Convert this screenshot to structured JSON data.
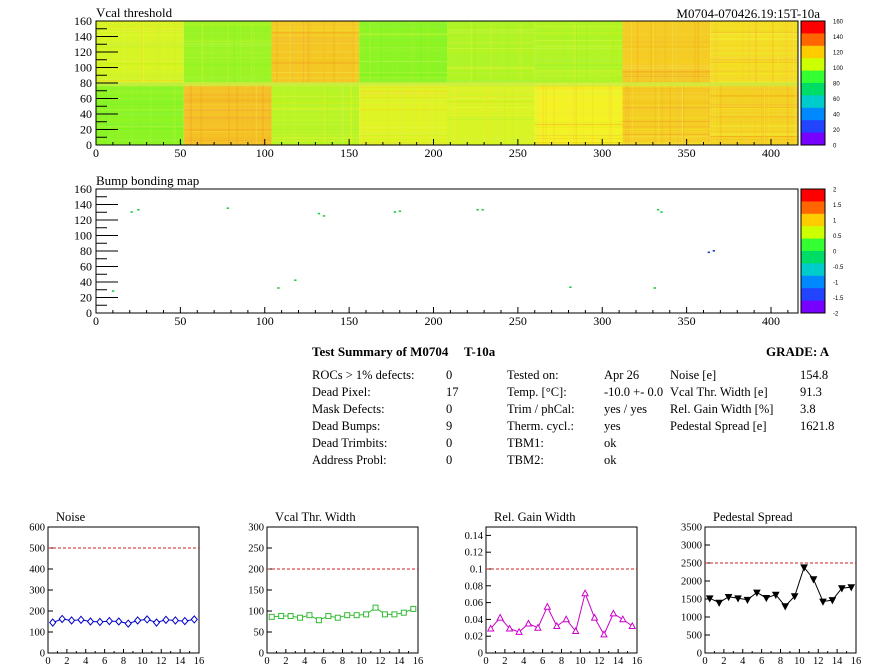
{
  "header": {
    "title_right": "M0704-070426.19:15T-10a"
  },
  "maps": [
    {
      "title": "Vcal threshold",
      "xlim": [
        0,
        416
      ],
      "ylim": [
        0,
        160
      ],
      "xticks": [
        0,
        50,
        100,
        150,
        200,
        250,
        300,
        350,
        400
      ],
      "yticks": [
        0,
        20,
        40,
        60,
        80,
        100,
        120,
        140,
        160
      ],
      "scale_labels": [
        "160",
        "140",
        "120",
        "100",
        "80",
        "60",
        "40",
        "20",
        "0"
      ]
    },
    {
      "title": "Bump bonding map",
      "xlim": [
        0,
        416
      ],
      "ylim": [
        0,
        160
      ],
      "xticks": [
        0,
        50,
        100,
        150,
        200,
        250,
        300,
        350,
        400
      ],
      "yticks": [
        0,
        20,
        40,
        60,
        80,
        100,
        120,
        140,
        160
      ],
      "scale_labels": [
        "2",
        "1.5",
        "1",
        "0.5",
        "0",
        "-0.5",
        "-1",
        "-1.5",
        "-2"
      ],
      "points": [
        {
          "x": 21,
          "y": 130,
          "c": "#22cc44"
        },
        {
          "x": 25,
          "y": 133,
          "c": "#22cc44"
        },
        {
          "x": 78,
          "y": 135,
          "c": "#22cc44"
        },
        {
          "x": 132,
          "y": 128,
          "c": "#22cc44"
        },
        {
          "x": 135,
          "y": 125,
          "c": "#22cc44"
        },
        {
          "x": 177,
          "y": 130,
          "c": "#22cc44"
        },
        {
          "x": 180,
          "y": 131,
          "c": "#22cc44"
        },
        {
          "x": 226,
          "y": 133,
          "c": "#22cc44"
        },
        {
          "x": 229,
          "y": 133,
          "c": "#22cc44"
        },
        {
          "x": 333,
          "y": 133,
          "c": "#22cc44"
        },
        {
          "x": 335,
          "y": 130,
          "c": "#22cc44"
        },
        {
          "x": 363,
          "y": 78,
          "c": "#2244cc"
        },
        {
          "x": 366,
          "y": 80,
          "c": "#2244cc"
        },
        {
          "x": 118,
          "y": 42,
          "c": "#22cc44"
        },
        {
          "x": 108,
          "y": 32,
          "c": "#22cc44"
        },
        {
          "x": 281,
          "y": 33,
          "c": "#22cc44"
        },
        {
          "x": 331,
          "y": 32,
          "c": "#22cc44"
        },
        {
          "x": 10,
          "y": 28,
          "c": "#22cc44"
        }
      ]
    }
  ],
  "summary": {
    "title": "Test Summary of M0704",
    "subtitle": "T-10a",
    "grade": "GRADE:  A",
    "col1": [
      {
        "label": "ROCs > 1% defects:",
        "value": "0"
      },
      {
        "label": "Dead Pixel:",
        "value": "17"
      },
      {
        "label": "Mask Defects:",
        "value": "0"
      },
      {
        "label": "Dead Bumps:",
        "value": "9"
      },
      {
        "label": "Dead Trimbits:",
        "value": "0"
      },
      {
        "label": "Address Probl:",
        "value": "0"
      }
    ],
    "col2": [
      {
        "label": "Tested on:",
        "value": "Apr 26"
      },
      {
        "label": "Temp. [°C]:",
        "value": "-10.0 +- 0.0"
      },
      {
        "label": "Trim / phCal:",
        "value": "yes / yes"
      },
      {
        "label": "Therm. cycl.:",
        "value": "yes"
      },
      {
        "label": "TBM1:",
        "value": "ok"
      },
      {
        "label": "TBM2:",
        "value": "ok"
      }
    ],
    "col3": [
      {
        "label": "Noise [e]",
        "value": "154.8"
      },
      {
        "label": "Vcal Thr. Width [e]",
        "value": "91.3"
      },
      {
        "label": "Rel. Gain Width [%]",
        "value": "3.8"
      },
      {
        "label": "Pedestal Spread [e]",
        "value": "1621.8"
      }
    ]
  },
  "chart_data": [
    {
      "type": "line",
      "title": "Noise",
      "color": "#0000cc",
      "marker": "diamond",
      "xlim": [
        0,
        16
      ],
      "ylim": [
        0,
        600
      ],
      "xticks": [
        0,
        2,
        4,
        6,
        8,
        10,
        12,
        14,
        16
      ],
      "yticks": [
        0,
        100,
        200,
        300,
        400,
        500,
        600
      ],
      "limit": 500,
      "x": [
        0.5,
        1.5,
        2.5,
        3.5,
        4.5,
        5.5,
        6.5,
        7.5,
        8.5,
        9.5,
        10.5,
        11.5,
        12.5,
        13.5,
        14.5,
        15.5
      ],
      "values": [
        145,
        162,
        155,
        158,
        150,
        148,
        152,
        150,
        140,
        155,
        160,
        145,
        158,
        155,
        152,
        160
      ]
    },
    {
      "type": "line",
      "title": "Vcal Thr. Width",
      "color": "#33bb33",
      "marker": "square",
      "xlim": [
        0,
        16
      ],
      "ylim": [
        0,
        300
      ],
      "xticks": [
        0,
        2,
        4,
        6,
        8,
        10,
        12,
        14,
        16
      ],
      "yticks": [
        0,
        50,
        100,
        150,
        200,
        250,
        300
      ],
      "limit": 200,
      "x": [
        0.5,
        1.5,
        2.5,
        3.5,
        4.5,
        5.5,
        6.5,
        7.5,
        8.5,
        9.5,
        10.5,
        11.5,
        12.5,
        13.5,
        14.5,
        15.5
      ],
      "values": [
        86,
        88,
        88,
        84,
        90,
        78,
        88,
        84,
        90,
        90,
        92,
        108,
        92,
        92,
        96,
        105
      ]
    },
    {
      "type": "line",
      "title": "Rel. Gain Width",
      "color": "#cc00cc",
      "marker": "triangle",
      "xlim": [
        0,
        16
      ],
      "ylim": [
        0,
        0.15
      ],
      "xticks": [
        0,
        2,
        4,
        6,
        8,
        10,
        12,
        14,
        16
      ],
      "yticks": [
        0,
        0.02,
        0.04,
        0.06,
        0.08,
        0.1,
        0.12,
        0.14
      ],
      "limit": 0.1,
      "x": [
        0.5,
        1.5,
        2.5,
        3.5,
        4.5,
        5.5,
        6.5,
        7.5,
        8.5,
        9.5,
        10.5,
        11.5,
        12.5,
        13.5,
        14.5,
        15.5
      ],
      "values": [
        0.029,
        0.042,
        0.029,
        0.025,
        0.035,
        0.03,
        0.055,
        0.032,
        0.04,
        0.026,
        0.071,
        0.042,
        0.022,
        0.047,
        0.04,
        0.032
      ]
    },
    {
      "type": "line",
      "title": "Pedestal Spread",
      "color": "#000000",
      "marker": "triangle-down",
      "xlim": [
        0,
        16
      ],
      "ylim": [
        0,
        3500
      ],
      "xticks": [
        0,
        2,
        4,
        6,
        8,
        10,
        12,
        14,
        16
      ],
      "yticks": [
        0,
        500,
        1000,
        1500,
        2000,
        2500,
        3000,
        3500
      ],
      "limit": 2500,
      "x": [
        0.5,
        1.5,
        2.5,
        3.5,
        4.5,
        5.5,
        6.5,
        7.5,
        8.5,
        9.5,
        10.5,
        11.5,
        12.5,
        13.5,
        14.5,
        15.5
      ],
      "values": [
        1520,
        1400,
        1560,
        1520,
        1480,
        1680,
        1530,
        1620,
        1300,
        1580,
        2380,
        2050,
        1430,
        1470,
        1800,
        1830
      ]
    }
  ]
}
